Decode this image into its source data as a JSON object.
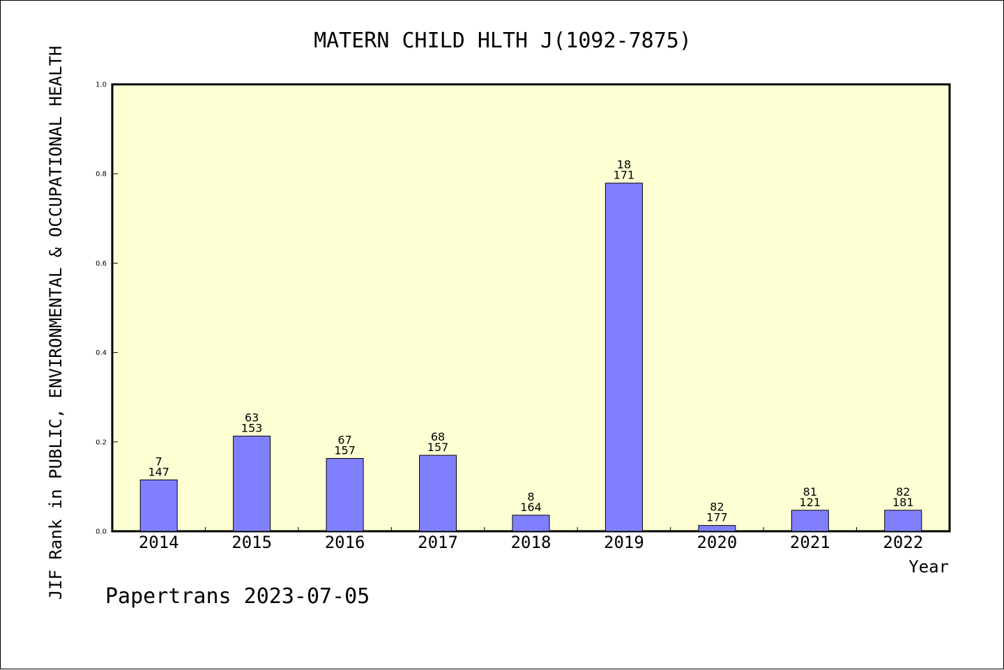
{
  "chart_data": {
    "type": "bar",
    "title": "MATERN CHILD HLTH J(1092-7875)",
    "xlabel": "Year",
    "ylabel": "JIF Rank in PUBLIC, ENVIRONMENTAL & OCCUPATIONAL HEALTH",
    "ylim": [
      0,
      1.0
    ],
    "yticks": [
      "0.0",
      "0.2",
      "0.4",
      "0.6",
      "0.8",
      "1.0"
    ],
    "categories": [
      "2014",
      "2015",
      "2016",
      "2017",
      "2018",
      "2019",
      "2020",
      "2021",
      "2022"
    ],
    "values": [
      0.115,
      0.213,
      0.163,
      0.17,
      0.036,
      0.779,
      0.013,
      0.047,
      0.047
    ],
    "rank_labels": [
      "7",
      "63",
      "67",
      "68",
      "8",
      "18",
      "82",
      "81",
      "82"
    ],
    "total_labels": [
      "147",
      "153",
      "157",
      "157",
      "164",
      "171",
      "177",
      "121",
      "181"
    ],
    "grid": false,
    "colors": {
      "plot_bg": "#ffffd4",
      "bar_fill": "#8080ff",
      "bar_stroke": "#000000"
    }
  },
  "footer": {
    "source": "Papertrans 2023-07-05"
  }
}
